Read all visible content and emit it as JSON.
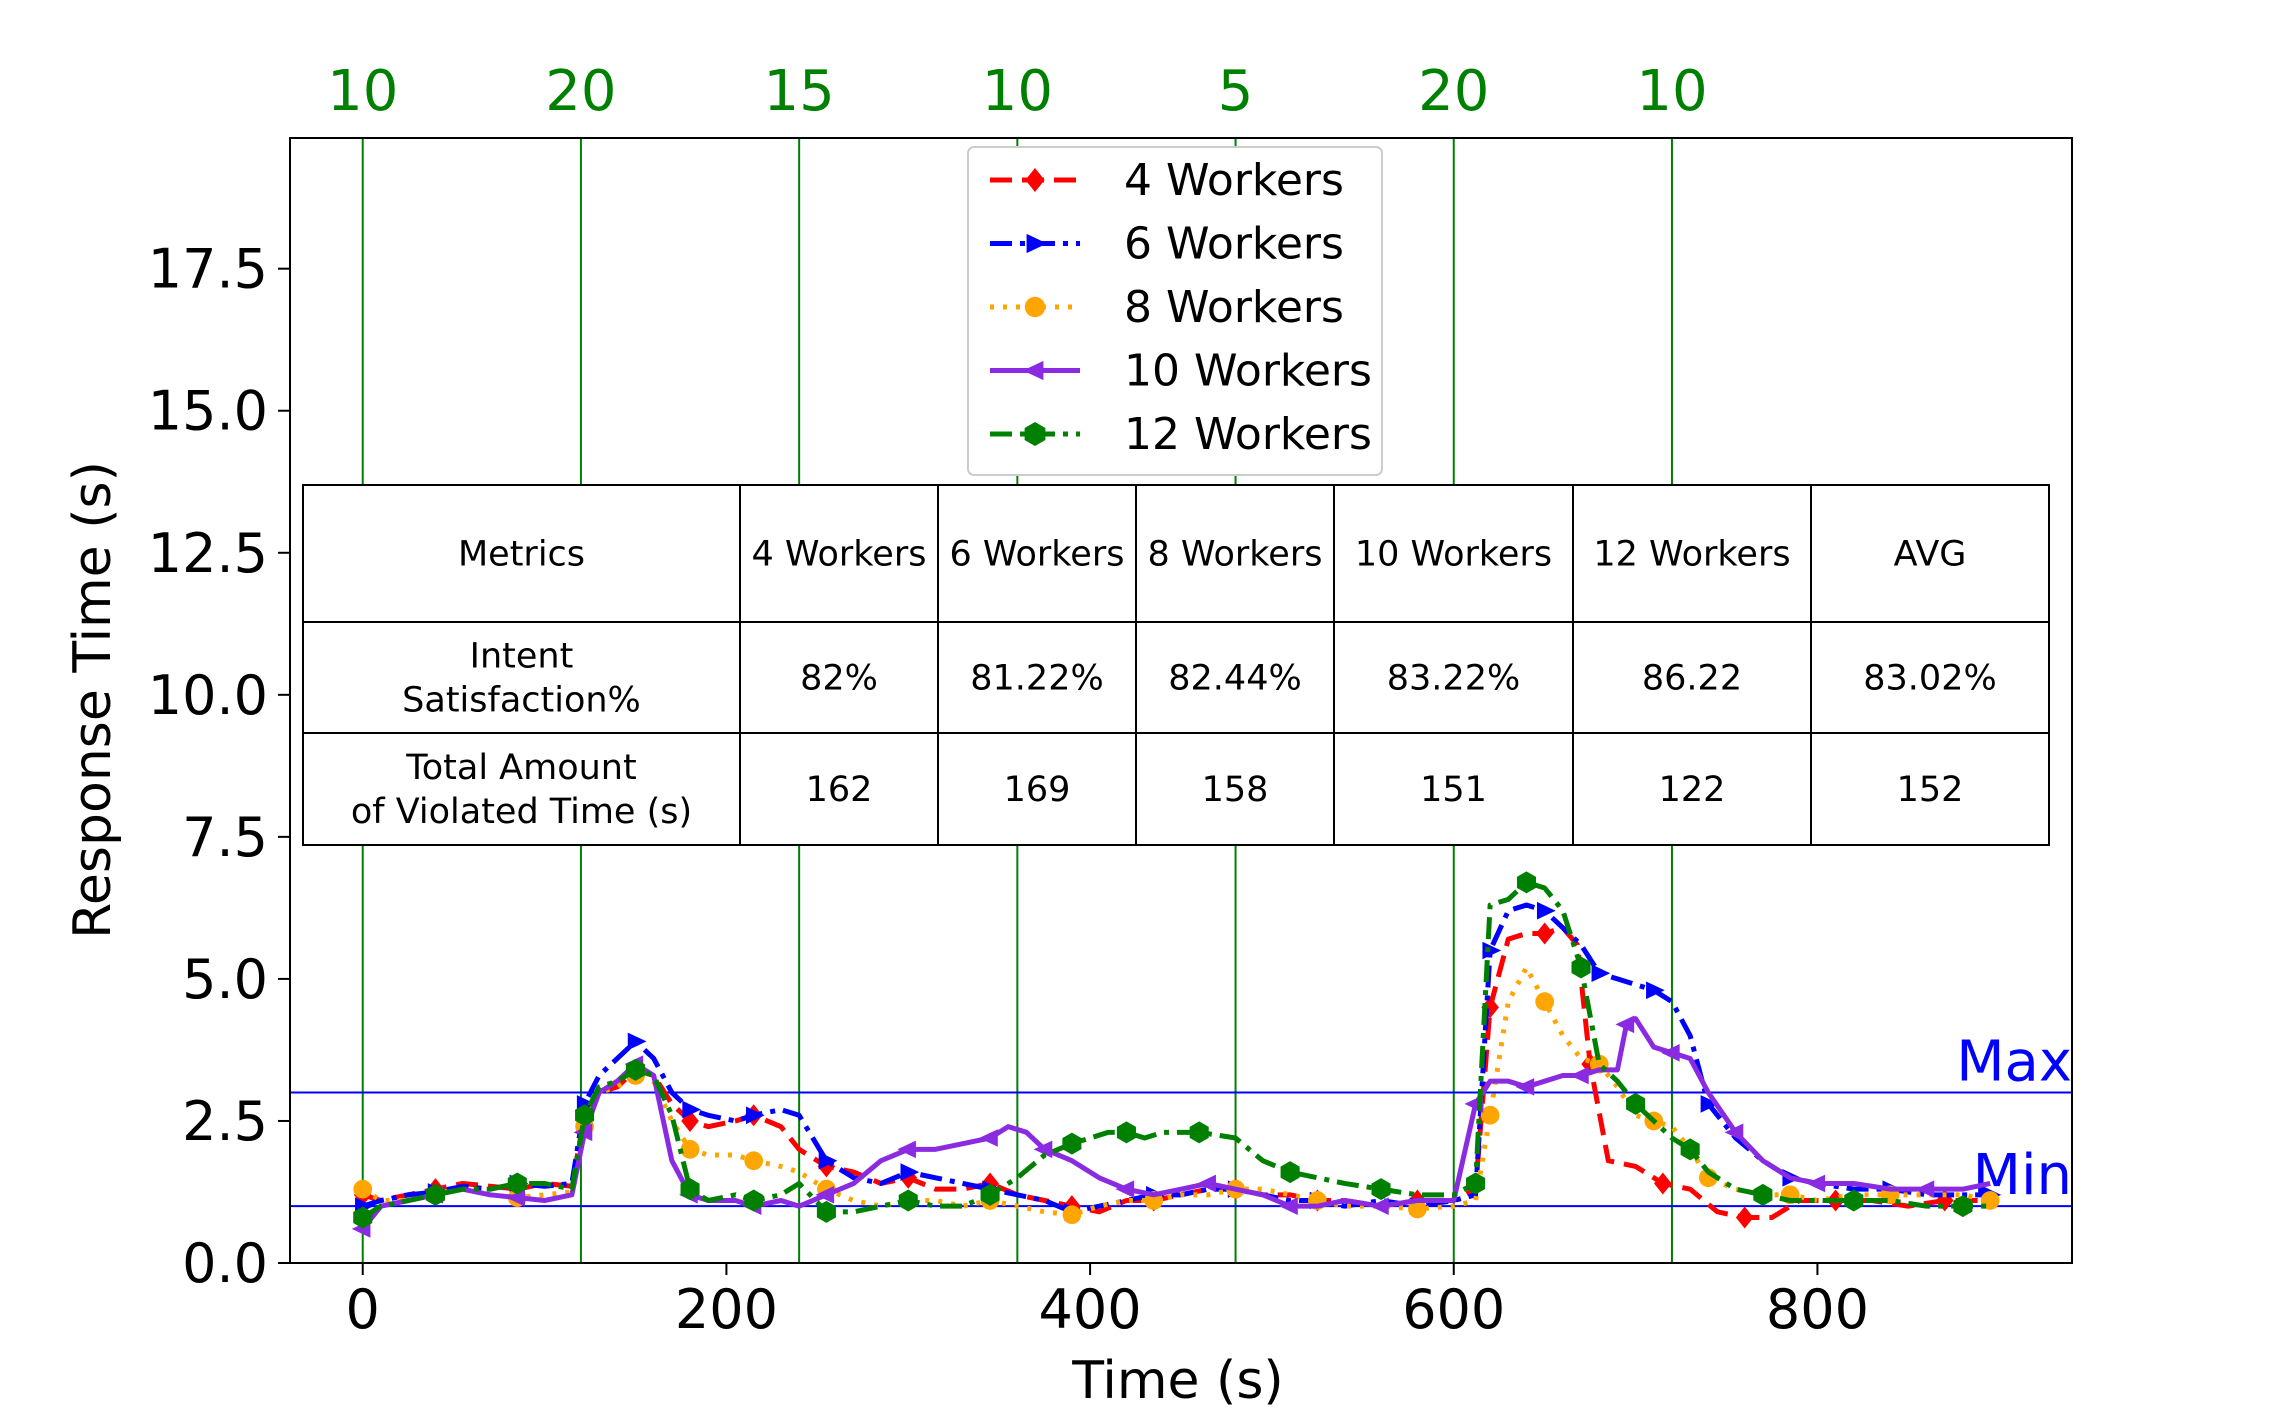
{
  "chart_data": {
    "type": "line",
    "title": "",
    "xlabel": "Time (s)",
    "ylabel": "Response Time (s)",
    "xlim": [
      -40,
      940
    ],
    "ylim": [
      0,
      19.8
    ],
    "xticks": [
      0,
      200,
      400,
      600,
      800
    ],
    "yticks": [
      0.0,
      2.5,
      5.0,
      7.5,
      10.0,
      12.5,
      15.0,
      17.5
    ],
    "xtick_labels": [
      "0",
      "200",
      "400",
      "600",
      "800"
    ],
    "ytick_labels": [
      "0.0",
      "2.5",
      "5.0",
      "7.5",
      "10.0",
      "12.5",
      "15.0",
      "17.5"
    ],
    "grid": false,
    "legend_position": "upper-center",
    "phase_markers": {
      "color": "#008000",
      "x": [
        0,
        120,
        240,
        360,
        480,
        600,
        720
      ],
      "labels": [
        "10",
        "20",
        "15",
        "10",
        "5",
        "20",
        "10"
      ]
    },
    "thresholds": [
      {
        "label": "Max",
        "y": 3.0,
        "color": "#0000ff"
      },
      {
        "label": "Min",
        "y": 1.0,
        "color": "#0000ff"
      }
    ],
    "series": [
      {
        "name": "4 Workers",
        "color": "#ff0000",
        "dash": "dashed",
        "marker": "diamond",
        "x": [
          0,
          10,
          25,
          40,
          55,
          70,
          85,
          100,
          115,
          122,
          130,
          140,
          150,
          160,
          170,
          180,
          190,
          205,
          215,
          230,
          240,
          255,
          270,
          285,
          300,
          315,
          330,
          345,
          360,
          375,
          390,
          405,
          420,
          435,
          450,
          465,
          480,
          495,
          510,
          525,
          540,
          560,
          580,
          600,
          612,
          620,
          630,
          640,
          650,
          660,
          668,
          675,
          685,
          700,
          715,
          730,
          745,
          760,
          775,
          790,
          810,
          830,
          850,
          870,
          890
        ],
        "y": [
          1.2,
          1.1,
          1.2,
          1.3,
          1.4,
          1.35,
          1.3,
          1.4,
          1.35,
          2.6,
          3.0,
          3.1,
          3.4,
          3.3,
          2.8,
          2.5,
          2.4,
          2.5,
          2.6,
          2.4,
          2.0,
          1.7,
          1.6,
          1.4,
          1.5,
          1.3,
          1.3,
          1.4,
          1.2,
          1.1,
          1.0,
          0.9,
          1.1,
          1.1,
          1.2,
          1.3,
          1.3,
          1.2,
          1.2,
          1.1,
          1.1,
          1.0,
          1.1,
          1.1,
          1.3,
          4.5,
          5.7,
          5.8,
          5.8,
          5.9,
          5.6,
          3.5,
          1.8,
          1.7,
          1.4,
          1.3,
          0.9,
          0.8,
          0.8,
          1.1,
          1.1,
          1.1,
          1.0,
          1.1,
          1.1
        ]
      },
      {
        "name": "6 Workers",
        "color": "#0000ff",
        "dash": "dashdot",
        "marker": "triangle-right",
        "x": [
          0,
          10,
          25,
          40,
          55,
          70,
          85,
          100,
          115,
          122,
          130,
          140,
          150,
          160,
          170,
          180,
          190,
          205,
          215,
          230,
          240,
          255,
          270,
          285,
          300,
          315,
          330,
          345,
          360,
          375,
          390,
          405,
          420,
          435,
          450,
          465,
          480,
          495,
          510,
          525,
          540,
          560,
          580,
          600,
          612,
          620,
          630,
          640,
          650,
          660,
          670,
          680,
          690,
          700,
          710,
          720,
          730,
          740,
          755,
          770,
          785,
          800,
          820,
          840,
          860,
          880,
          895
        ],
        "y": [
          1.0,
          1.1,
          1.2,
          1.25,
          1.35,
          1.3,
          1.4,
          1.35,
          1.4,
          2.8,
          3.3,
          3.6,
          3.9,
          3.6,
          3.0,
          2.7,
          2.6,
          2.5,
          2.6,
          2.7,
          2.6,
          1.8,
          1.5,
          1.4,
          1.6,
          1.5,
          1.4,
          1.3,
          1.2,
          1.1,
          0.9,
          1.0,
          1.1,
          1.2,
          1.2,
          1.3,
          1.3,
          1.2,
          1.1,
          1.1,
          1.0,
          1.1,
          1.0,
          1.1,
          1.2,
          5.5,
          6.2,
          6.3,
          6.2,
          5.9,
          5.6,
          5.1,
          5.0,
          4.9,
          4.8,
          4.6,
          4.0,
          2.8,
          2.2,
          1.8,
          1.5,
          1.4,
          1.3,
          1.3,
          1.2,
          1.2,
          1.2
        ]
      },
      {
        "name": "8 Workers",
        "color": "#ffa500",
        "dash": "dotted",
        "marker": "circle",
        "x": [
          0,
          10,
          25,
          40,
          55,
          70,
          85,
          100,
          115,
          122,
          130,
          140,
          150,
          160,
          170,
          180,
          190,
          205,
          215,
          230,
          240,
          255,
          270,
          285,
          300,
          315,
          330,
          345,
          360,
          375,
          390,
          405,
          420,
          435,
          450,
          465,
          480,
          495,
          510,
          525,
          540,
          560,
          580,
          600,
          612,
          620,
          630,
          640,
          650,
          660,
          670,
          680,
          690,
          700,
          710,
          720,
          730,
          740,
          755,
          770,
          785,
          800,
          820,
          840,
          860,
          880,
          895
        ],
        "y": [
          1.3,
          1.1,
          1.1,
          1.2,
          1.3,
          1.2,
          1.15,
          1.2,
          1.25,
          2.4,
          3.0,
          3.1,
          3.3,
          3.2,
          2.5,
          2.0,
          1.9,
          1.9,
          1.8,
          1.7,
          1.6,
          1.3,
          1.1,
          1.0,
          1.1,
          1.1,
          1.0,
          1.1,
          1.0,
          0.9,
          0.85,
          1.0,
          1.1,
          1.1,
          1.2,
          1.2,
          1.3,
          1.3,
          1.2,
          1.1,
          1.0,
          1.0,
          0.95,
          1.0,
          1.1,
          2.6,
          4.6,
          5.2,
          4.6,
          4.0,
          3.6,
          3.5,
          3.1,
          2.6,
          2.5,
          2.4,
          2.0,
          1.5,
          1.3,
          1.2,
          1.2,
          1.1,
          1.2,
          1.2,
          1.2,
          1.2,
          1.1
        ]
      },
      {
        "name": "10 Workers",
        "color": "#8a2be2",
        "dash": "solid",
        "marker": "triangle-left",
        "x": [
          0,
          10,
          25,
          40,
          55,
          70,
          85,
          100,
          115,
          122,
          130,
          140,
          150,
          160,
          170,
          180,
          190,
          205,
          215,
          230,
          240,
          255,
          270,
          285,
          300,
          315,
          330,
          345,
          355,
          365,
          375,
          390,
          405,
          420,
          435,
          450,
          465,
          480,
          495,
          510,
          525,
          540,
          560,
          580,
          600,
          612,
          620,
          630,
          640,
          650,
          660,
          670,
          680,
          690,
          695,
          700,
          710,
          720,
          730,
          740,
          755,
          770,
          785,
          800,
          820,
          840,
          860,
          880,
          895
        ],
        "y": [
          0.6,
          1.0,
          1.1,
          1.2,
          1.3,
          1.2,
          1.15,
          1.1,
          1.2,
          2.3,
          3.0,
          3.2,
          3.5,
          3.3,
          1.8,
          1.2,
          1.1,
          1.1,
          1.0,
          1.1,
          1.0,
          1.2,
          1.4,
          1.8,
          2.0,
          2.0,
          2.1,
          2.2,
          2.4,
          2.3,
          2.0,
          1.8,
          1.5,
          1.3,
          1.2,
          1.3,
          1.4,
          1.3,
          1.2,
          1.0,
          1.0,
          1.1,
          1.0,
          1.1,
          1.1,
          2.8,
          3.2,
          3.2,
          3.1,
          3.2,
          3.3,
          3.3,
          3.4,
          3.4,
          4.2,
          4.3,
          3.8,
          3.7,
          3.6,
          3.0,
          2.3,
          1.8,
          1.5,
          1.4,
          1.4,
          1.3,
          1.3,
          1.3,
          1.4
        ]
      },
      {
        "name": "12 Workers",
        "color": "#008000",
        "dash": "dashdot",
        "marker": "hexagon",
        "x": [
          0,
          10,
          25,
          40,
          55,
          70,
          85,
          100,
          115,
          122,
          130,
          140,
          150,
          160,
          170,
          180,
          190,
          205,
          215,
          230,
          240,
          255,
          270,
          285,
          300,
          315,
          330,
          345,
          360,
          375,
          390,
          400,
          410,
          420,
          430,
          440,
          460,
          480,
          495,
          510,
          525,
          540,
          560,
          580,
          600,
          612,
          620,
          630,
          640,
          650,
          660,
          670,
          680,
          690,
          700,
          710,
          720,
          730,
          740,
          755,
          770,
          785,
          800,
          820,
          840,
          860,
          880,
          895
        ],
        "y": [
          0.8,
          1.0,
          1.1,
          1.2,
          1.3,
          1.3,
          1.4,
          1.4,
          1.3,
          2.6,
          3.1,
          3.2,
          3.4,
          3.3,
          2.6,
          1.3,
          1.1,
          1.2,
          1.1,
          1.2,
          1.4,
          0.9,
          0.9,
          1.0,
          1.1,
          1.0,
          1.0,
          1.2,
          1.5,
          1.9,
          2.1,
          2.2,
          2.3,
          2.3,
          2.2,
          2.3,
          2.3,
          2.2,
          1.8,
          1.6,
          1.5,
          1.4,
          1.3,
          1.2,
          1.2,
          1.4,
          6.3,
          6.4,
          6.7,
          6.6,
          6.2,
          5.2,
          3.5,
          3.2,
          2.8,
          2.5,
          2.2,
          2.0,
          1.6,
          1.3,
          1.2,
          1.1,
          1.1,
          1.1,
          1.1,
          1.0,
          1.0,
          1.0
        ]
      }
    ],
    "table": {
      "headers": [
        "Metrics",
        "4 Workers",
        "6 Workers",
        "8 Workers",
        "10 Workers",
        "12 Workers",
        "AVG"
      ],
      "rows": [
        {
          "label_lines": [
            "Intent",
            "Satisfaction%"
          ],
          "values": [
            "82%",
            "81.22%",
            "82.44%",
            "83.22%",
            "86.22",
            "83.02%"
          ]
        },
        {
          "label_lines": [
            "Total Amount",
            "of Violated Time (s)"
          ],
          "values": [
            "162",
            "169",
            "158",
            "151",
            "122",
            "152"
          ]
        }
      ]
    }
  }
}
